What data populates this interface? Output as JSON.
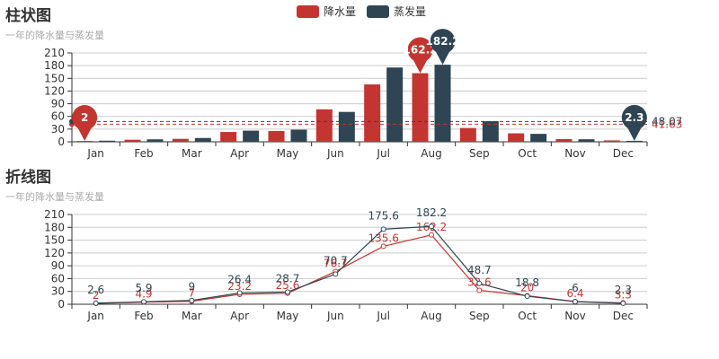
{
  "legend": [
    {
      "name": "降水量",
      "color": "#c23531"
    },
    {
      "name": "蒸发量",
      "color": "#2f4554"
    }
  ],
  "chart_data": [
    {
      "type": "bar",
      "title": "柱状图",
      "subtitle": "一年的降水量与蒸发量",
      "categories": [
        "Jan",
        "Feb",
        "Mar",
        "Apr",
        "May",
        "Jun",
        "Jul",
        "Aug",
        "Sep",
        "Oct",
        "Nov",
        "Dec"
      ],
      "series": [
        {
          "name": "降水量",
          "color": "#c23531",
          "values": [
            2.0,
            4.9,
            7.0,
            23.2,
            25.6,
            76.7,
            135.6,
            162.2,
            32.6,
            20.0,
            6.4,
            3.3
          ]
        },
        {
          "name": "蒸发量",
          "color": "#2f4554",
          "values": [
            2.6,
            5.9,
            9.0,
            26.4,
            28.7,
            70.7,
            175.6,
            182.2,
            48.7,
            18.8,
            6.0,
            2.3
          ]
        }
      ],
      "mark_points": [
        {
          "series": "降水量",
          "category": "Jan",
          "label": "2"
        },
        {
          "series": "降水量",
          "category": "Aug",
          "label": "162.2"
        },
        {
          "series": "蒸发量",
          "category": "Aug",
          "label": "182.2"
        },
        {
          "series": "蒸发量",
          "category": "Dec",
          "label": "2.3"
        }
      ],
      "mark_lines": [
        {
          "series": "降水量",
          "value": 41.63,
          "label": "41.63"
        },
        {
          "series": "蒸发量",
          "value": 48.07,
          "label": "48.07"
        }
      ],
      "yticks": [
        0,
        30,
        60,
        90,
        120,
        150,
        180,
        210
      ],
      "ylim": [
        0,
        210
      ],
      "grid": true,
      "legend_position": "top-center"
    },
    {
      "type": "line",
      "title": "折线图",
      "subtitle": "一年的降水量与蒸发量",
      "categories": [
        "Jan",
        "Feb",
        "Mar",
        "Apr",
        "May",
        "Jun",
        "Jul",
        "Aug",
        "Sep",
        "Oct",
        "Nov",
        "Dec"
      ],
      "series": [
        {
          "name": "降水量",
          "color": "#c23531",
          "values": [
            2.0,
            4.9,
            7.0,
            23.2,
            25.6,
            76.7,
            135.6,
            162.2,
            32.6,
            20.0,
            6.4,
            3.3
          ],
          "labels": [
            "2",
            "4.9",
            "7",
            "23.2",
            "25.6",
            "76.7",
            "135.6",
            "162.2",
            "32.6",
            "20",
            "6.4",
            "3.3"
          ]
        },
        {
          "name": "蒸发量",
          "color": "#2f4554",
          "values": [
            2.6,
            5.9,
            9.0,
            26.4,
            28.7,
            70.7,
            175.6,
            182.2,
            48.7,
            18.8,
            6.0,
            2.3
          ],
          "labels": [
            "2.6",
            "5.9",
            "9",
            "26.4",
            "28.7",
            "70.7",
            "175.6",
            "182.2",
            "48.7",
            "18.8",
            "6",
            "2.3"
          ]
        }
      ],
      "yticks": [
        0,
        30,
        60,
        90,
        120,
        150,
        180,
        210
      ],
      "ylim": [
        0,
        210
      ],
      "grid": true
    }
  ]
}
